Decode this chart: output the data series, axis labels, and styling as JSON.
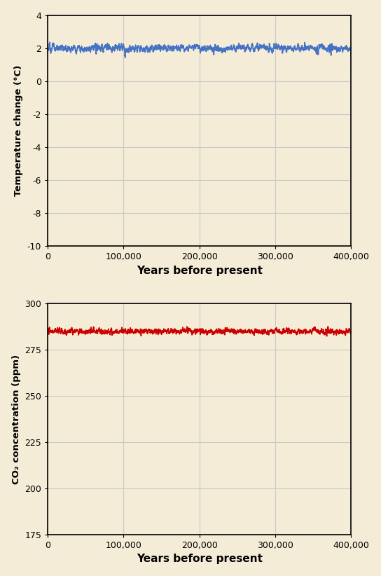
{
  "xlabel": "Years before present",
  "ylabel_temp": "Temperature change (°C)",
  "ylabel_co2": "CO₂ concentration (ppm)",
  "temp_ylim": [
    -10,
    4
  ],
  "temp_yticks": [
    -10,
    -8,
    -6,
    -4,
    -2,
    0,
    2,
    4
  ],
  "co2_ylim": [
    175,
    300
  ],
  "co2_yticks": [
    175,
    200,
    225,
    250,
    275,
    300
  ],
  "xticks": [
    0,
    100000,
    200000,
    300000,
    400000
  ],
  "xticklabels": [
    "0",
    "100,000",
    "200,000",
    "300,000",
    "400,000"
  ],
  "temp_color": "#4472C4",
  "co2_color": "#CC0000",
  "background_color": "#F5ECD7",
  "grid_color": "#C8C8C8",
  "line_width": 1.2,
  "fig_width": 5.44,
  "fig_height": 8.22,
  "dpi": 100
}
